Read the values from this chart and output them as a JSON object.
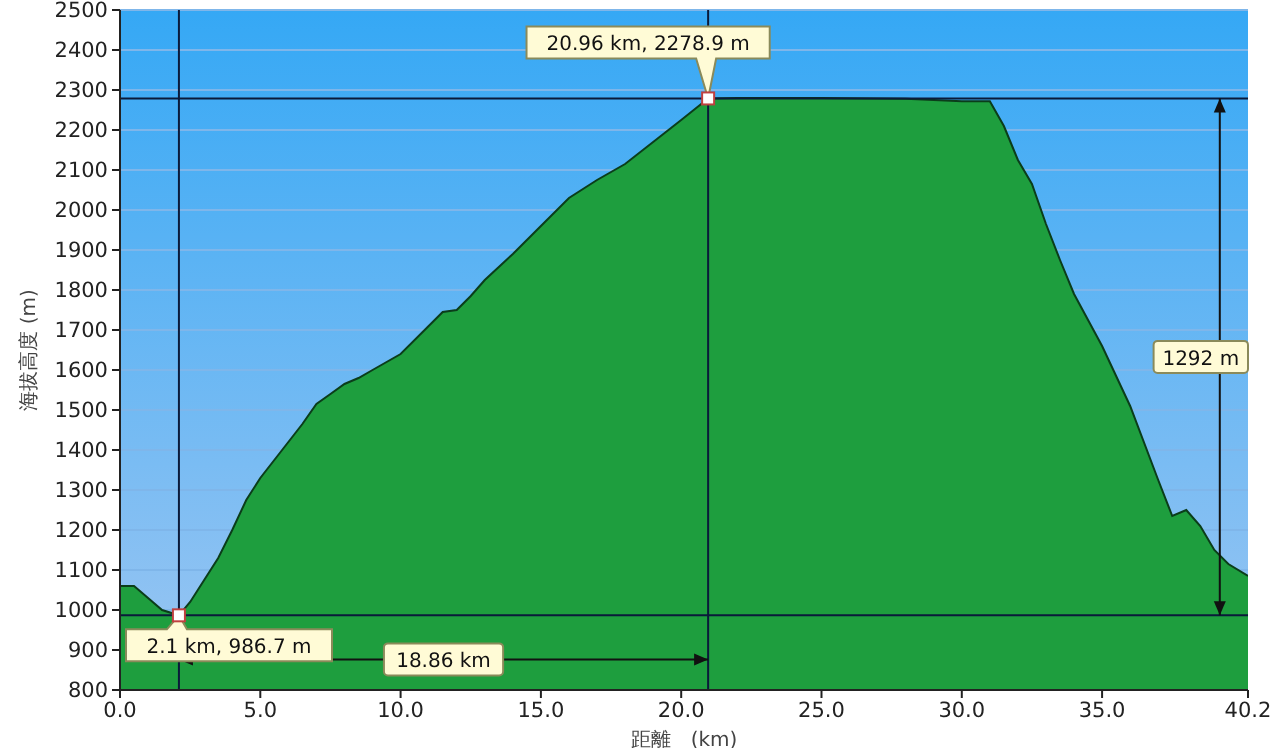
{
  "chart_data": {
    "type": "area",
    "xlabel": "距離　(km)",
    "ylabel": "海拔高度 (m)",
    "x": [
      0,
      0.5,
      1.0,
      1.5,
      2.1,
      2.5,
      3.0,
      3.5,
      4.0,
      4.5,
      5.0,
      5.5,
      6.0,
      6.5,
      7.0,
      7.5,
      8.0,
      8.5,
      9.0,
      10.0,
      11.0,
      11.5,
      12.0,
      12.5,
      13.0,
      14.0,
      15.0,
      16.0,
      17.0,
      18.0,
      19.0,
      20.0,
      20.96,
      22.0,
      25.0,
      28.0,
      30.0,
      31.0,
      31.5,
      32.0,
      32.5,
      33.0,
      33.5,
      34.0,
      35.0,
      36.0,
      37.0,
      37.5,
      38.0,
      38.5,
      39.0,
      39.5,
      40.2
    ],
    "series": [
      {
        "color": "#1e9e3e",
        "values": [
          1060,
          1060,
          1030,
          1000,
          986.7,
          1020,
          1075,
          1130,
          1200,
          1275,
          1330,
          1375,
          1420,
          1465,
          1515,
          1540,
          1565,
          1580,
          1600,
          1640,
          1710,
          1745,
          1750,
          1785,
          1825,
          1890,
          1960,
          2030,
          2075,
          2115,
          2170,
          2225,
          2278.9,
          2280,
          2280,
          2278,
          2272,
          2272,
          2210,
          2125,
          2065,
          1965,
          1875,
          1790,
          1660,
          1510,
          1325,
          1235,
          1250,
          1210,
          1150,
          1115,
          1085
        ]
      }
    ],
    "xlim": [
      0,
      40.2
    ],
    "ylim": [
      800,
      2500
    ],
    "xticks": [
      {
        "value": 0,
        "label": "0.0"
      },
      {
        "value": 5,
        "label": "5.0"
      },
      {
        "value": 10,
        "label": "10.0"
      },
      {
        "value": 15,
        "label": "15.0"
      },
      {
        "value": 20,
        "label": "20.0"
      },
      {
        "value": 25,
        "label": "25.0"
      },
      {
        "value": 30,
        "label": "30.0"
      },
      {
        "value": 35,
        "label": "35.0"
      },
      40.2
    ],
    "yticks": [
      800,
      900,
      1000,
      1100,
      1200,
      1300,
      1400,
      1500,
      1600,
      1700,
      1800,
      1900,
      2000,
      2100,
      2200,
      2300,
      2400,
      2500
    ],
    "grid": "y",
    "ref_lines": [
      {
        "axis": "x",
        "value": 2.1,
        "color": "#0a1a3a"
      },
      {
        "axis": "x",
        "value": 20.96,
        "color": "#0a1a3a"
      },
      {
        "axis": "y",
        "value": 986.7,
        "color": "#0a1a3a"
      },
      {
        "axis": "y",
        "value": 2278.9,
        "color": "#0a1a3a"
      }
    ],
    "annotations": [
      {
        "text": "20.96 km, 2278.9 m",
        "x": 20.96,
        "y": 2278.9
      },
      {
        "text": "2.1 km, 986.7 m",
        "x": 2.1,
        "y": 986.7
      },
      "18.86 km",
      "1292 m"
    ]
  }
}
